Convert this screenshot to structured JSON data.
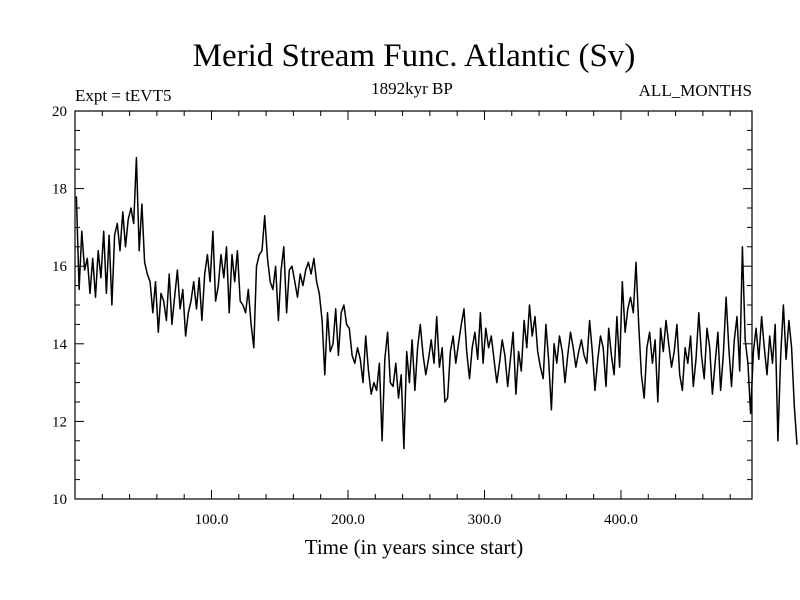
{
  "chart_data": {
    "type": "line",
    "title": "Merid Stream Func. Atlantic (Sv)",
    "subtitle_left": "Expt = tEVT5",
    "subtitle_center": "1892kyr BP",
    "subtitle_right": "ALL_MONTHS",
    "xlabel": "Time (in years since start)",
    "ylabel": "",
    "xlim": [
      0,
      496
    ],
    "ylim": [
      10,
      20
    ],
    "x_ticks": [
      100,
      200,
      300,
      400
    ],
    "x_tick_labels": [
      "100.0",
      "200.0",
      "300.0",
      "400.0"
    ],
    "y_ticks": [
      10,
      12,
      14,
      16,
      18,
      20
    ],
    "y_tick_labels": [
      "10",
      "12",
      "14",
      "16",
      "18",
      "20"
    ],
    "grid": false,
    "series": [
      {
        "name": "Merid Stream Func. Atlantic",
        "x_start": 1,
        "x_step": 2,
        "values": [
          17.8,
          15.4,
          16.9,
          15.9,
          16.2,
          15.3,
          16.2,
          15.2,
          16.4,
          15.7,
          16.9,
          15.3,
          16.8,
          15.0,
          16.8,
          17.1,
          16.4,
          17.4,
          16.5,
          17.2,
          17.5,
          17.1,
          18.8,
          16.4,
          17.6,
          16.1,
          15.8,
          15.6,
          14.8,
          15.6,
          14.3,
          15.3,
          15.1,
          14.6,
          15.8,
          14.5,
          15.2,
          15.9,
          14.9,
          15.4,
          14.2,
          14.8,
          15.1,
          15.6,
          14.9,
          15.7,
          14.6,
          15.8,
          16.3,
          15.6,
          16.9,
          15.1,
          15.5,
          16.3,
          15.7,
          16.5,
          14.8,
          16.3,
          15.6,
          16.4,
          15.1,
          15.0,
          14.8,
          15.4,
          14.5,
          13.9,
          16.0,
          16.3,
          16.4,
          17.3,
          16.2,
          15.6,
          15.4,
          16.0,
          14.6,
          15.9,
          16.5,
          14.8,
          15.9,
          16.0,
          15.6,
          15.2,
          15.8,
          15.5,
          15.9,
          16.1,
          15.8,
          16.2,
          15.6,
          15.3,
          14.6,
          13.2,
          14.8,
          13.8,
          14.0,
          14.9,
          13.7,
          14.8,
          15.0,
          14.5,
          14.4,
          13.7,
          13.5,
          13.9,
          13.6,
          13.0,
          14.2,
          13.3,
          12.7,
          13.0,
          12.8,
          13.5,
          11.5,
          13.6,
          14.3,
          13.0,
          12.9,
          13.5,
          12.6,
          13.2,
          11.3,
          13.8,
          13.0,
          14.1,
          12.8,
          13.9,
          14.5,
          13.7,
          13.2,
          13.6,
          14.1,
          13.5,
          14.7,
          13.4,
          13.9,
          12.5,
          12.6,
          13.8,
          14.2,
          13.5,
          14.0,
          14.5,
          14.9,
          13.8,
          13.1,
          13.9,
          14.3,
          13.6,
          14.8,
          13.5,
          14.4,
          13.9,
          14.2,
          13.6,
          13.0,
          13.5,
          14.1,
          13.7,
          12.9,
          13.6,
          14.3,
          12.7,
          13.8,
          13.3,
          14.6,
          13.9,
          15.0,
          14.2,
          14.7,
          13.8,
          13.4,
          13.1,
          14.5,
          13.6,
          12.3,
          14.0,
          13.5,
          14.2,
          13.8,
          13.0,
          13.7,
          14.3,
          13.9,
          13.4,
          13.8,
          14.1,
          13.7,
          13.5,
          14.6,
          13.8,
          12.8,
          13.6,
          14.2,
          13.9,
          12.9,
          14.4,
          13.7,
          13.2,
          14.7,
          13.4,
          15.6,
          14.3,
          14.9,
          15.2,
          14.8,
          16.1,
          14.5,
          13.2,
          12.6,
          13.9,
          14.3,
          13.5,
          14.1,
          12.5,
          14.4,
          13.8,
          14.6,
          14.0,
          13.4,
          13.8,
          14.5,
          13.2,
          12.8,
          13.9,
          13.5,
          14.2,
          12.9,
          13.6,
          14.8,
          13.7,
          13.1,
          14.4,
          13.9,
          12.7,
          13.5,
          14.3,
          12.8,
          13.7,
          15.2,
          13.9,
          12.9,
          14.1,
          14.7,
          13.3,
          16.5,
          14.1,
          13.5,
          12.2,
          13.8,
          14.4,
          13.6,
          14.7,
          13.9,
          13.2,
          14.2,
          13.5,
          14.5,
          11.5,
          13.7,
          15.0,
          13.6,
          14.6,
          13.9,
          12.4,
          11.4
        ]
      }
    ]
  }
}
